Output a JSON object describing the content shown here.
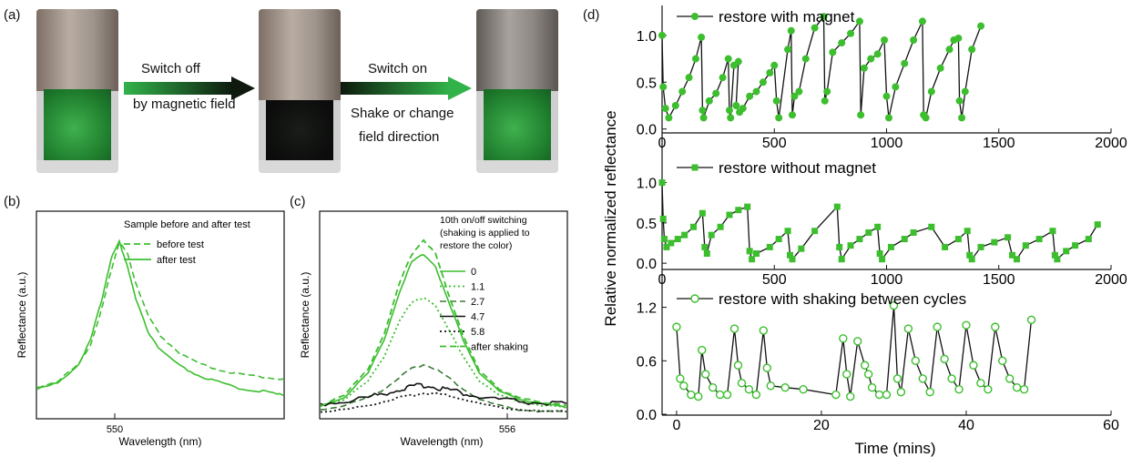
{
  "figure": {
    "panel_labels": {
      "a": "(a)",
      "b": "(b)",
      "c": "(c)",
      "d": "(d)"
    },
    "panel_a": {
      "arrow1": {
        "line1": "Switch off",
        "line2": "by magnetic field"
      },
      "arrow2": {
        "line1": "Switch on",
        "line2": "Shake or change",
        "line3": "field direction"
      }
    },
    "panel_b": {
      "xlabel": "Wavelength (nm)",
      "ylabel": "Reflectance (a.u.)",
      "xtick": "550",
      "legend_title": "Sample before and after test",
      "legend": [
        "before test",
        "after test"
      ]
    },
    "panel_c": {
      "xlabel": "Wavelength (nm)",
      "ylabel": "Reflectance (a.u.)",
      "xtick": "556",
      "legend_title": [
        "10th on/off switching",
        "(shaking is applied to",
        "restore the color)"
      ],
      "legend": [
        "0",
        "1.1",
        "2.7",
        "4.7",
        "5.8",
        "after shaking"
      ]
    },
    "panel_d": {
      "ylabel": "Relative normalized reflectance",
      "xlabel": "Time (mins)",
      "top": {
        "legend": "restore with magnet",
        "yticks": [
          "0.0",
          "0.5",
          "1.0"
        ],
        "xticks": [
          "0",
          "500",
          "1000",
          "1500",
          "2000"
        ]
      },
      "mid": {
        "legend": "restore without magnet",
        "yticks": [
          "0.0",
          "0.5",
          "1.0"
        ],
        "xticks": [
          "0",
          "500",
          "1000",
          "1500",
          "2000"
        ]
      },
      "bot": {
        "legend": "restore with shaking between cycles",
        "yticks": [
          "0.0",
          "0.6",
          "1.2"
        ],
        "xticks": [
          "0",
          "20",
          "40",
          "60"
        ]
      }
    },
    "colors": {
      "green": "#3cbe2e",
      "black": "#111111",
      "dark_green": "#3a7a35"
    }
  },
  "chart_data": [
    {
      "type": "line",
      "title": "",
      "xlabel": "Wavelength (nm)",
      "ylabel": "Reflectance (a.u.)",
      "x": [
        530,
        535,
        540,
        543,
        546,
        548,
        550,
        552,
        554,
        557,
        560,
        565,
        570,
        575,
        580,
        585,
        590
      ],
      "series": [
        {
          "name": "before test",
          "values": [
            0.15,
            0.18,
            0.26,
            0.36,
            0.55,
            0.72,
            0.86,
            0.8,
            0.66,
            0.5,
            0.4,
            0.31,
            0.26,
            0.23,
            0.21,
            0.2,
            0.19
          ]
        },
        {
          "name": "after test",
          "values": [
            0.14,
            0.17,
            0.26,
            0.38,
            0.6,
            0.78,
            0.86,
            0.74,
            0.58,
            0.42,
            0.33,
            0.25,
            0.2,
            0.17,
            0.14,
            0.13,
            0.11
          ]
        }
      ]
    },
    {
      "type": "line",
      "xlabel": "Wavelength (nm)",
      "ylabel": "Reflectance (a.u.)",
      "x": [
        530,
        536,
        542,
        546,
        550,
        553,
        556,
        559,
        562,
        566,
        570,
        575,
        580,
        586,
        592
      ],
      "series": [
        {
          "name": "0",
          "values": [
            0.06,
            0.1,
            0.22,
            0.38,
            0.62,
            0.76,
            0.8,
            0.74,
            0.58,
            0.38,
            0.22,
            0.13,
            0.09,
            0.07,
            0.05
          ]
        },
        {
          "name": "1.1",
          "values": [
            0.06,
            0.09,
            0.18,
            0.3,
            0.48,
            0.56,
            0.59,
            0.55,
            0.44,
            0.3,
            0.18,
            0.11,
            0.08,
            0.06,
            0.05
          ]
        },
        {
          "name": "2.7",
          "values": [
            0.04,
            0.06,
            0.1,
            0.14,
            0.2,
            0.24,
            0.26,
            0.24,
            0.2,
            0.14,
            0.09,
            0.06,
            0.04,
            0.03,
            0.03
          ]
        },
        {
          "name": "4.7",
          "values": [
            0.07,
            0.08,
            0.1,
            0.12,
            0.14,
            0.15,
            0.16,
            0.15,
            0.14,
            0.12,
            0.1,
            0.09,
            0.08,
            0.07,
            0.07
          ]
        },
        {
          "name": "5.8",
          "values": [
            0.03,
            0.04,
            0.06,
            0.08,
            0.1,
            0.11,
            0.12,
            0.12,
            0.11,
            0.09,
            0.07,
            0.05,
            0.04,
            0.03,
            0.03
          ]
        },
        {
          "name": "after shaking",
          "values": [
            0.06,
            0.11,
            0.24,
            0.41,
            0.66,
            0.8,
            0.87,
            0.8,
            0.62,
            0.4,
            0.23,
            0.14,
            0.1,
            0.07,
            0.06
          ]
        }
      ]
    },
    {
      "type": "line",
      "xlabel": "",
      "ylabel": "Relative normalized reflectance",
      "xlim": [
        0,
        2000
      ],
      "ylim": [
        -0.1,
        1.3
      ],
      "series": [
        {
          "name": "restore with magnet",
          "x": [
            0,
            5,
            15,
            30,
            60,
            90,
            120,
            150,
            175,
            180,
            185,
            210,
            240,
            270,
            295,
            300,
            305,
            320,
            340,
            330,
            345,
            360,
            390,
            420,
            450,
            480,
            500,
            510,
            520,
            560,
            575,
            580,
            590,
            610,
            640,
            680,
            720,
            725,
            735,
            760,
            800,
            840,
            880,
            885,
            900,
            930,
            960,
            990,
            1000,
            1010,
            1040,
            1080,
            1120,
            1160,
            1165,
            1175,
            1200,
            1240,
            1280,
            1300,
            1320,
            1325,
            1335,
            1350,
            1380,
            1420
          ],
          "values": [
            1.0,
            0.45,
            0.22,
            0.12,
            0.25,
            0.4,
            0.55,
            0.75,
            0.98,
            0.2,
            0.12,
            0.3,
            0.38,
            0.55,
            0.75,
            0.2,
            0.12,
            0.68,
            0.72,
            0.25,
            0.18,
            0.22,
            0.35,
            0.4,
            0.5,
            0.6,
            0.68,
            0.3,
            0.12,
            0.85,
            1.05,
            0.15,
            0.35,
            0.4,
            0.75,
            1.08,
            1.2,
            0.3,
            0.4,
            0.82,
            0.92,
            1.02,
            1.15,
            0.15,
            0.65,
            0.75,
            0.8,
            0.95,
            0.35,
            0.12,
            0.45,
            0.7,
            0.95,
            1.15,
            0.15,
            0.12,
            0.4,
            0.65,
            0.85,
            0.95,
            0.97,
            0.3,
            0.12,
            0.4,
            0.85,
            1.1
          ]
        }
      ]
    },
    {
      "type": "line",
      "xlabel": "",
      "ylabel": "Relative normalized reflectance",
      "xlim": [
        0,
        2000
      ],
      "ylim": [
        -0.1,
        1.3
      ],
      "series": [
        {
          "name": "restore without magnet",
          "x": [
            0,
            5,
            10,
            20,
            40,
            70,
            100,
            140,
            180,
            190,
            200,
            220,
            260,
            300,
            340,
            380,
            390,
            400,
            420,
            480,
            520,
            560,
            570,
            580,
            620,
            680,
            780,
            790,
            800,
            840,
            880,
            920,
            960,
            970,
            980,
            1020,
            1080,
            1120,
            1200,
            1260,
            1320,
            1360,
            1370,
            1380,
            1420,
            1480,
            1540,
            1560,
            1580,
            1620,
            1680,
            1740,
            1750,
            1760,
            1800,
            1840,
            1900,
            1940
          ],
          "values": [
            1.0,
            0.55,
            0.3,
            0.2,
            0.25,
            0.3,
            0.35,
            0.45,
            0.62,
            0.2,
            0.12,
            0.35,
            0.45,
            0.6,
            0.66,
            0.7,
            0.15,
            0.05,
            0.12,
            0.2,
            0.3,
            0.4,
            0.1,
            0.05,
            0.18,
            0.4,
            0.7,
            0.2,
            0.05,
            0.22,
            0.3,
            0.38,
            0.45,
            0.12,
            0.05,
            0.2,
            0.3,
            0.38,
            0.45,
            0.2,
            0.3,
            0.4,
            0.1,
            0.05,
            0.2,
            0.26,
            0.32,
            0.1,
            0.05,
            0.22,
            0.3,
            0.4,
            0.1,
            0.05,
            0.15,
            0.22,
            0.3,
            0.48
          ]
        }
      ]
    },
    {
      "type": "line",
      "xlabel": "Time (mins)",
      "ylabel": "Relative normalized reflectance",
      "xlim": [
        -2,
        60
      ],
      "ylim": [
        -0.05,
        1.4
      ],
      "series": [
        {
          "name": "restore with shaking between cycles",
          "x": [
            0,
            0.5,
            1,
            2,
            3,
            3.5,
            4,
            5,
            6,
            7,
            8,
            8.5,
            9,
            10,
            11,
            12,
            12.5,
            13,
            15,
            17.5,
            22,
            23,
            23.5,
            24,
            25,
            26,
            26.5,
            27,
            28,
            29,
            30,
            30.5,
            31,
            32,
            33,
            34,
            35,
            36,
            37,
            38,
            39,
            40,
            41,
            42,
            43,
            44,
            45,
            46,
            47,
            48,
            49
          ],
          "values": [
            0.98,
            0.4,
            0.32,
            0.22,
            0.2,
            0.72,
            0.45,
            0.3,
            0.22,
            0.22,
            0.96,
            0.55,
            0.35,
            0.28,
            0.22,
            0.94,
            0.52,
            0.32,
            0.3,
            0.28,
            0.22,
            0.85,
            0.45,
            0.2,
            0.82,
            0.55,
            0.45,
            0.3,
            0.22,
            0.22,
            1.22,
            0.4,
            0.25,
            0.96,
            0.6,
            0.4,
            0.25,
            0.98,
            0.62,
            0.4,
            0.28,
            1.0,
            0.55,
            0.35,
            0.28,
            0.98,
            0.6,
            0.4,
            0.3,
            0.28,
            1.06
          ]
        }
      ]
    }
  ]
}
